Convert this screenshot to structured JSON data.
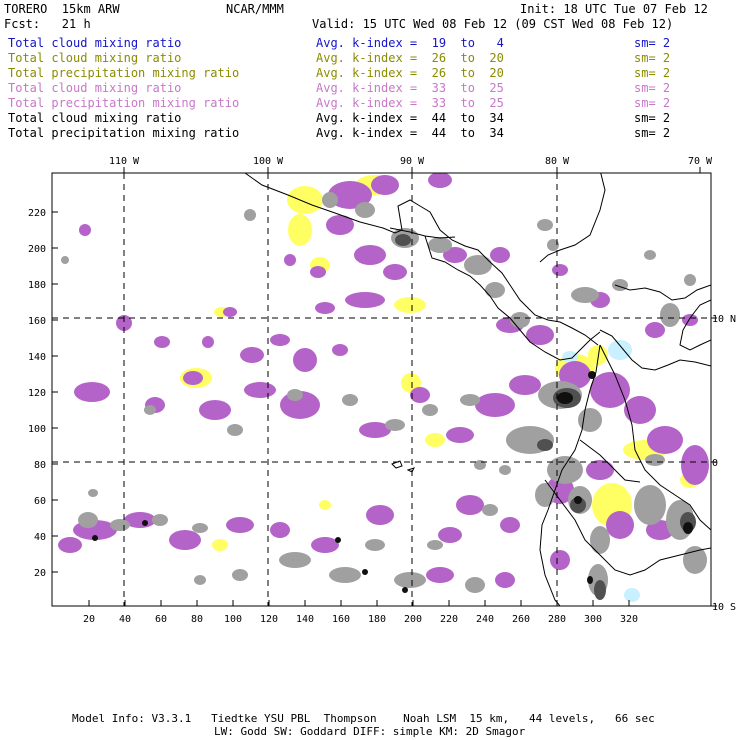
{
  "header": {
    "model": "TORERO  15km ARW",
    "center": "NCAR/MMM",
    "init": "Init: 18 UTC Tue 07 Feb 12",
    "fcst": "Fcst:   21 h",
    "valid": "Valid: 15 UTC Wed 08 Feb 12 (09 CST Wed 08 Feb 12)"
  },
  "legend": [
    {
      "label": "Total cloud mixing ratio",
      "index": "Avg. k-index =  19  to   4",
      "sm": "sm= 2",
      "color": "#1414c8"
    },
    {
      "label": "Total cloud mixing ratio",
      "index": "Avg. k-index =  26  to  20",
      "sm": "sm= 2",
      "color": "#8c8c00"
    },
    {
      "label": "Total precipitation mixing ratio",
      "index": "Avg. k-index =  26  to  20",
      "sm": "sm= 2",
      "color": "#8c8c00"
    },
    {
      "label": "Total cloud mixing ratio",
      "index": "Avg. k-index =  33  to  25",
      "sm": "sm= 2",
      "color": "#c878c8"
    },
    {
      "label": "Total precipitation mixing ratio",
      "index": "Avg. k-index =  33  to  25",
      "sm": "sm= 2",
      "color": "#c878c8"
    },
    {
      "label": "Total cloud mixing ratio",
      "index": "Avg. k-index =  44  to  34",
      "sm": "sm= 2",
      "color": "#000000"
    },
    {
      "label": "Total precipitation mixing ratio",
      "index": "Avg. k-index =  44  to  34",
      "sm": "sm= 2",
      "color": "#000000"
    }
  ],
  "map": {
    "lon_labels": [
      "110 W",
      "100 W",
      "90 W",
      "80 W",
      "70 W"
    ],
    "lat_labels": [
      "10 N",
      "0",
      "10 S"
    ],
    "x_ticks": [
      "20",
      "40",
      "60",
      "80",
      "100",
      "120",
      "140",
      "160",
      "180",
      "200",
      "220",
      "240",
      "260",
      "280",
      "300",
      "320"
    ],
    "y_ticks": [
      "20",
      "40",
      "60",
      "80",
      "100",
      "120",
      "140",
      "160",
      "180",
      "200",
      "220"
    ],
    "colors": {
      "yellow": "#ffff64",
      "purple": "#b464c8",
      "gray": "#a0a0a0",
      "dark_gray": "#505050",
      "black": "#101010",
      "light_blue": "#c8f0ff"
    }
  },
  "footer": {
    "line1": "Model Info: V3.3.1   Tiedtke YSU PBL  Thompson    Noah LSM  15 km,   44 levels,   66 sec",
    "line2": "LW: Godd SW: Goddard DIFF: simple KM: 2D Smagor"
  }
}
